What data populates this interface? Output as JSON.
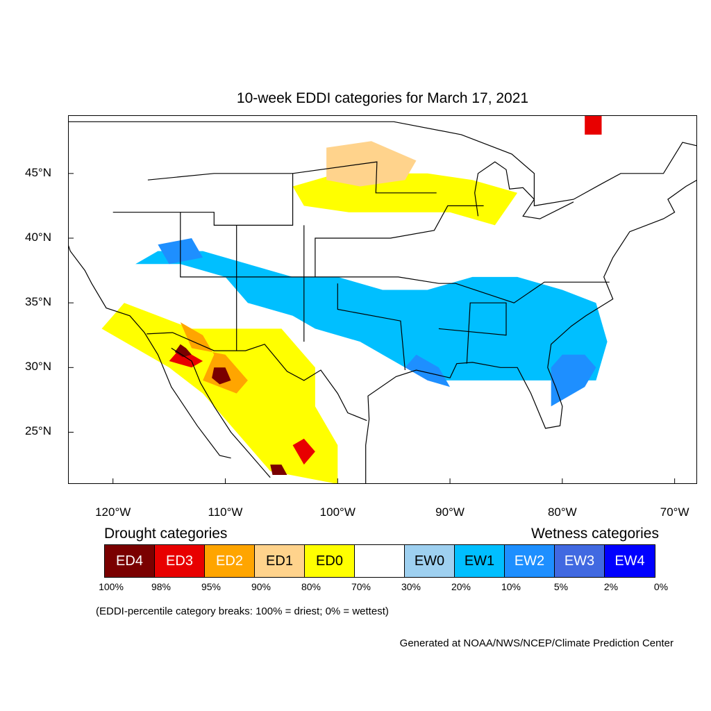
{
  "title": "10-week EDDI categories for March 17, 2021",
  "map": {
    "lon_range": [
      -124,
      -68
    ],
    "lat_range": [
      21,
      49.5
    ],
    "lat_ticks": [
      {
        "value": 45,
        "label": "45°N"
      },
      {
        "value": 40,
        "label": "40°N"
      },
      {
        "value": 35,
        "label": "35°N"
      },
      {
        "value": 30,
        "label": "30°N"
      },
      {
        "value": 25,
        "label": "25°N"
      }
    ],
    "lon_ticks": [
      {
        "value": -120,
        "label": "120°W"
      },
      {
        "value": -110,
        "label": "110°W"
      },
      {
        "value": -100,
        "label": "100°W"
      },
      {
        "value": -90,
        "label": "90°W"
      },
      {
        "value": -80,
        "label": "80°W"
      },
      {
        "value": -70,
        "label": "70°W"
      }
    ],
    "regions": [
      {
        "category": "EW1",
        "points": [
          [
            -118,
            38
          ],
          [
            -114,
            38
          ],
          [
            -110,
            37
          ],
          [
            -108,
            35
          ],
          [
            -104,
            34
          ],
          [
            -102,
            33
          ],
          [
            -98,
            32
          ],
          [
            -96,
            31
          ],
          [
            -94,
            30
          ],
          [
            -91,
            29
          ],
          [
            -88,
            29
          ],
          [
            -84,
            29
          ],
          [
            -80,
            29
          ],
          [
            -77,
            29
          ],
          [
            -76,
            32
          ],
          [
            -77,
            35
          ],
          [
            -80,
            36
          ],
          [
            -84,
            37
          ],
          [
            -88,
            37
          ],
          [
            -92,
            36
          ],
          [
            -96,
            36
          ],
          [
            -100,
            37
          ],
          [
            -104,
            37
          ],
          [
            -108,
            38
          ],
          [
            -112,
            39
          ],
          [
            -116,
            39
          ]
        ]
      },
      {
        "category": "EW2",
        "points": [
          [
            -81,
            27
          ],
          [
            -78,
            28.5
          ],
          [
            -77,
            30
          ],
          [
            -78,
            31
          ],
          [
            -80,
            31
          ],
          [
            -81,
            30
          ]
        ]
      },
      {
        "category": "EW2",
        "points": [
          [
            -116,
            39.5
          ],
          [
            -113,
            40
          ],
          [
            -112,
            38.5
          ],
          [
            -115,
            38
          ]
        ]
      },
      {
        "category": "EW2",
        "points": [
          [
            -94,
            30
          ],
          [
            -92,
            29
          ],
          [
            -90,
            28.5
          ],
          [
            -91,
            30
          ],
          [
            -93,
            31
          ]
        ]
      },
      {
        "category": "ED0",
        "points": [
          [
            -121,
            33
          ],
          [
            -118,
            31.5
          ],
          [
            -115,
            30
          ],
          [
            -112,
            28
          ],
          [
            -110,
            26
          ],
          [
            -108,
            24
          ],
          [
            -106,
            22
          ],
          [
            -103,
            21.5
          ],
          [
            -100,
            21
          ],
          [
            -100,
            24
          ],
          [
            -102,
            27
          ],
          [
            -102,
            30
          ],
          [
            -105,
            33
          ],
          [
            -109,
            33
          ],
          [
            -113,
            33
          ],
          [
            -116,
            34
          ],
          [
            -119,
            35
          ]
        ]
      },
      {
        "category": "ED0",
        "points": [
          [
            -104,
            44
          ],
          [
            -100,
            45
          ],
          [
            -96,
            45
          ],
          [
            -92,
            45
          ],
          [
            -88,
            44.5
          ],
          [
            -84,
            43.5
          ],
          [
            -86,
            41
          ],
          [
            -90,
            42
          ],
          [
            -95,
            42
          ],
          [
            -99,
            42
          ],
          [
            -103,
            42.5
          ]
        ]
      },
      {
        "category": "ED1",
        "points": [
          [
            -101,
            47
          ],
          [
            -97,
            47.5
          ],
          [
            -93,
            46
          ],
          [
            -94,
            44.5
          ],
          [
            -98,
            44
          ],
          [
            -101,
            44.5
          ]
        ]
      },
      {
        "category": "ED2",
        "points": [
          [
            -114,
            33.5
          ],
          [
            -112,
            32.5
          ],
          [
            -111,
            31
          ],
          [
            -112,
            29
          ],
          [
            -109,
            28
          ],
          [
            -108,
            29
          ],
          [
            -110,
            31
          ],
          [
            -113,
            31.5
          ]
        ]
      },
      {
        "category": "ED3",
        "points": [
          [
            -114,
            31.5
          ],
          [
            -113,
            31
          ],
          [
            -112,
            30.5
          ],
          [
            -113,
            30
          ],
          [
            -115,
            30.5
          ]
        ]
      },
      {
        "category": "ED4",
        "points": [
          [
            -111,
            30
          ],
          [
            -110,
            30
          ],
          [
            -109.5,
            29
          ],
          [
            -110.5,
            28.7
          ],
          [
            -111.2,
            29.2
          ]
        ]
      },
      {
        "category": "ED4",
        "points": [
          [
            -114,
            31.8
          ],
          [
            -113.5,
            31.5
          ],
          [
            -113,
            31
          ],
          [
            -113.8,
            30.8
          ],
          [
            -114.5,
            31.2
          ]
        ]
      },
      {
        "category": "ED3",
        "points": [
          [
            -78,
            49.5
          ],
          [
            -76.5,
            49.5
          ],
          [
            -76.5,
            48
          ],
          [
            -78,
            48
          ]
        ]
      },
      {
        "category": "ED4",
        "points": [
          [
            -106,
            22.5
          ],
          [
            -105,
            22.5
          ],
          [
            -104.5,
            21.7
          ],
          [
            -105.8,
            21.7
          ]
        ]
      },
      {
        "category": "ED3",
        "points": [
          [
            -104,
            24
          ],
          [
            -103,
            24.5
          ],
          [
            -102,
            23.5
          ],
          [
            -103,
            22.5
          ]
        ]
      }
    ]
  },
  "legend": {
    "drought_heading": "Drought categories",
    "wetness_heading": "Wetness categories",
    "categories": [
      {
        "code": "ED4",
        "color": "#7a0000",
        "text_color": "#ffffff"
      },
      {
        "code": "ED3",
        "color": "#e80000",
        "text_color": "#ffffff"
      },
      {
        "code": "ED2",
        "color": "#ffa500",
        "text_color": "#ffffff"
      },
      {
        "code": "ED1",
        "color": "#ffd38c",
        "text_color": "#000000"
      },
      {
        "code": "ED0",
        "color": "#ffff00",
        "text_color": "#000000"
      },
      {
        "code": "",
        "color": "#ffffff",
        "text_color": "#000000"
      },
      {
        "code": "EW0",
        "color": "#9ed0f0",
        "text_color": "#000000"
      },
      {
        "code": "EW1",
        "color": "#00bfff",
        "text_color": "#000000"
      },
      {
        "code": "EW2",
        "color": "#1e8fff",
        "text_color": "#ffffff"
      },
      {
        "code": "EW3",
        "color": "#4169e1",
        "text_color": "#ffffff"
      },
      {
        "code": "EW4",
        "color": "#0000ff",
        "text_color": "#ffffff"
      }
    ],
    "breaks": [
      "100%",
      "98%",
      "95%",
      "90%",
      "80%",
      "70%",
      "30%",
      "20%",
      "10%",
      "5%",
      "2%",
      "0%"
    ]
  },
  "note": "(EDDI-percentile category breaks: 100% = driest; 0% = wettest)",
  "credit": "Generated at NOAA/NWS/NCEP/Climate Prediction Center"
}
